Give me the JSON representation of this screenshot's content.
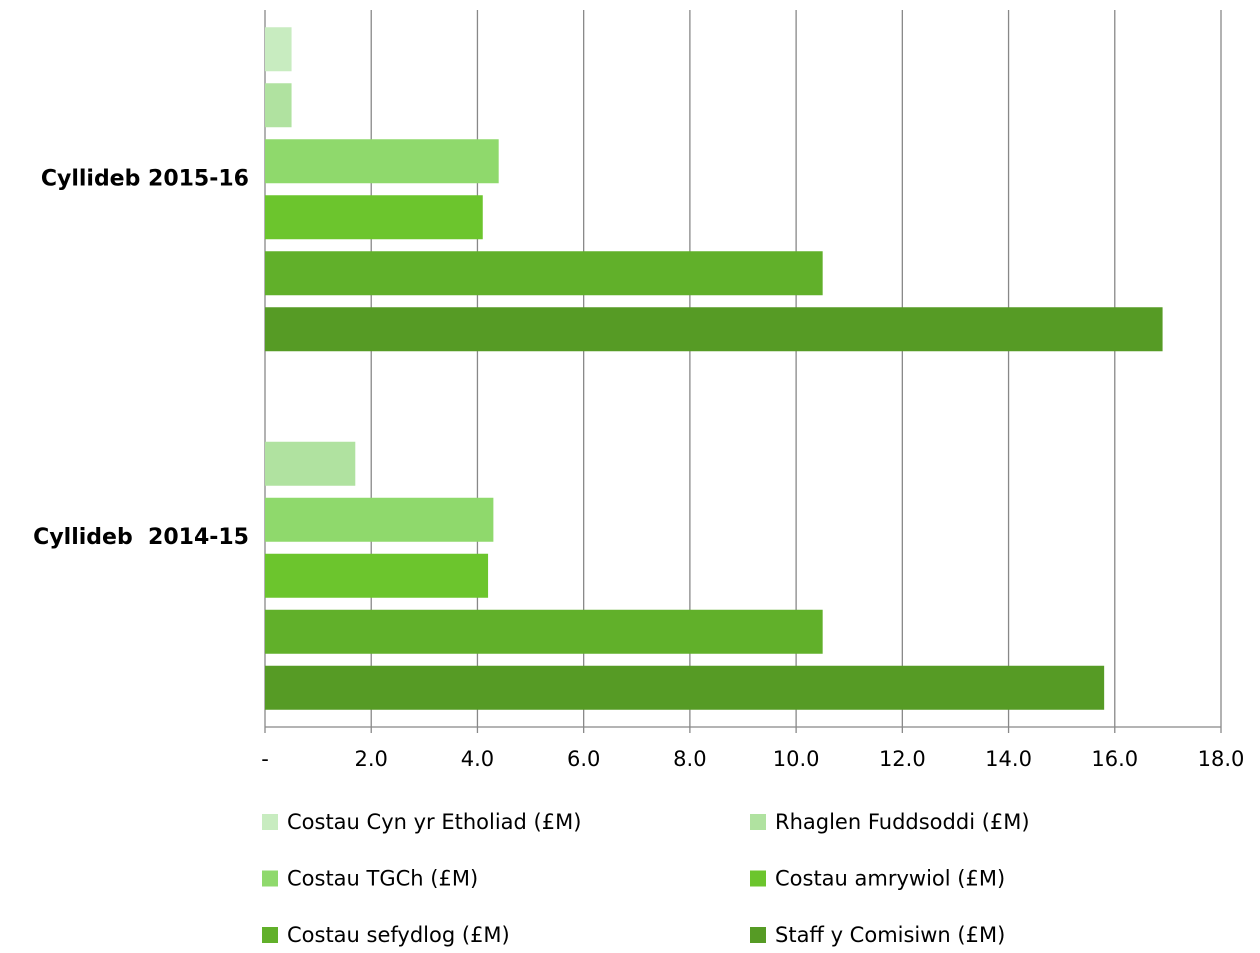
{
  "chart_data": {
    "type": "bar",
    "orientation": "horizontal",
    "categories": [
      "Cyllideb 2015-16",
      "Cyllideb  2014-15"
    ],
    "series": [
      {
        "name": "Costau Cyn yr Etholiad (£M)",
        "color": "#c8ecc0",
        "values": [
          0.5,
          null
        ]
      },
      {
        "name": "Rhaglen Fuddsoddi (£M)",
        "color": "#b0e2a0",
        "values": [
          0.5,
          1.7
        ]
      },
      {
        "name": "Costau TGCh (£M)",
        "color": "#8fd96c",
        "values": [
          4.4,
          4.3
        ]
      },
      {
        "name": "Costau amrywiol (£M)",
        "color": "#6cc52d",
        "values": [
          4.1,
          4.2
        ]
      },
      {
        "name": "Costau sefydlog (£M)",
        "color": "#61b02a",
        "values": [
          10.5,
          10.5
        ]
      },
      {
        "name": "Staff y Comisiwn (£M)",
        "color": "#569b25",
        "values": [
          16.9,
          15.8
        ]
      }
    ],
    "xlim": [
      0,
      18
    ],
    "xticks": [
      {
        "value": 0,
        "label": "-"
      },
      {
        "value": 2,
        "label": "2.0"
      },
      {
        "value": 4,
        "label": "4.0"
      },
      {
        "value": 6,
        "label": "6.0"
      },
      {
        "value": 8,
        "label": "8.0"
      },
      {
        "value": 10,
        "label": "10.0"
      },
      {
        "value": 12,
        "label": "12.0"
      },
      {
        "value": 14,
        "label": "14.0"
      },
      {
        "value": 16,
        "label": "16.0"
      },
      {
        "value": 18,
        "label": "18.0"
      }
    ],
    "grid": true,
    "legend": "bottom"
  }
}
